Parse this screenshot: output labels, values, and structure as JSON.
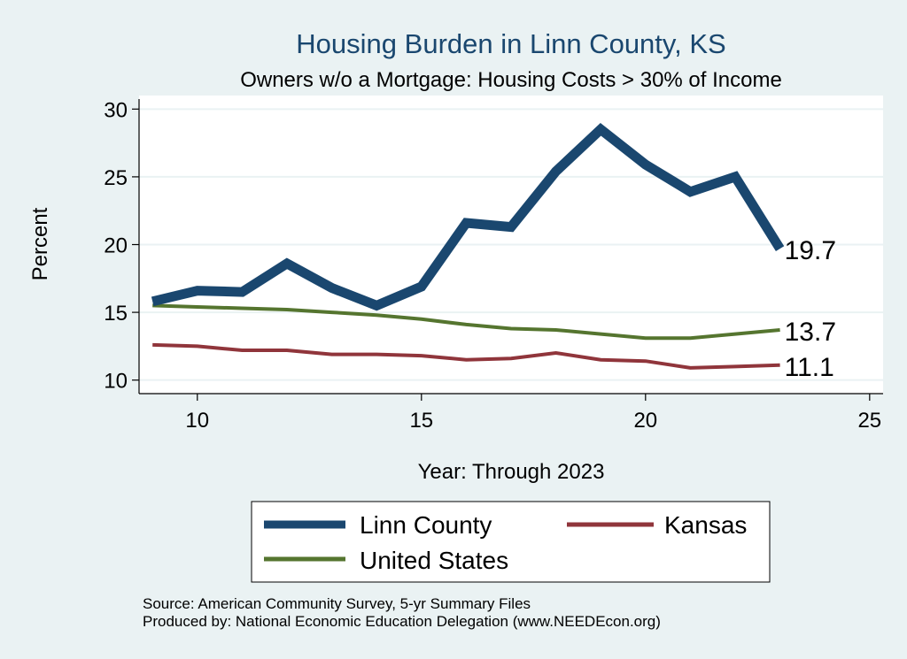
{
  "chart_data": {
    "type": "line",
    "title": "Housing Burden in Linn County, KS",
    "subtitle": "Owners w/o a Mortgage: Housing Costs > 30% of Income",
    "xlabel": "Year: Through 2023",
    "ylabel": "Percent",
    "xlim": [
      8.7,
      25.3
    ],
    "ylim": [
      9.0,
      31.0
    ],
    "xticks": [
      10,
      15,
      20,
      25
    ],
    "yticks": [
      10,
      15,
      20,
      25,
      30
    ],
    "grid": true,
    "x": [
      9,
      10,
      11,
      12,
      13,
      14,
      15,
      16,
      17,
      18,
      19,
      20,
      21,
      22,
      23
    ],
    "series": [
      {
        "name": "Linn County",
        "color": "#1a476f",
        "values": [
          15.8,
          16.6,
          16.5,
          18.6,
          16.8,
          15.5,
          16.9,
          21.6,
          21.3,
          25.4,
          28.5,
          25.9,
          23.9,
          25.0,
          19.7
        ],
        "end_label": "19.7"
      },
      {
        "name": "United States",
        "color": "#55752f",
        "values": [
          15.5,
          15.4,
          15.3,
          15.2,
          15.0,
          14.8,
          14.5,
          14.1,
          13.8,
          13.7,
          13.4,
          13.1,
          13.1,
          13.4,
          13.7
        ],
        "end_label": "13.7"
      },
      {
        "name": "Kansas",
        "color": "#90353b",
        "values": [
          12.6,
          12.5,
          12.2,
          12.2,
          11.9,
          11.9,
          11.8,
          11.5,
          11.6,
          12.0,
          11.5,
          11.4,
          10.9,
          11.0,
          11.1
        ],
        "end_label": "11.1"
      }
    ],
    "legend": [
      {
        "name": "Linn County",
        "color": "#1a476f"
      },
      {
        "name": "Kansas",
        "color": "#90353b"
      },
      {
        "name": "United States",
        "color": "#55752f"
      }
    ],
    "notes": [
      "Source: American Community Survey, 5-yr Summary Files",
      "Produced by: National Economic Education Delegation (www.NEEDEcon.org)"
    ]
  }
}
